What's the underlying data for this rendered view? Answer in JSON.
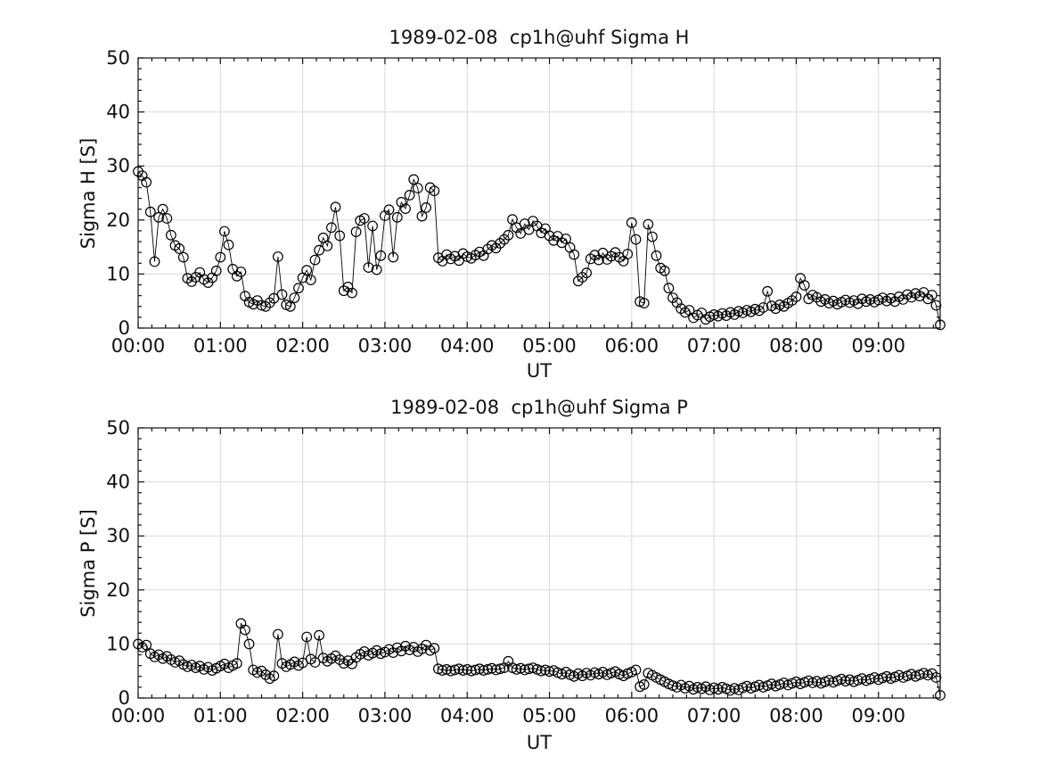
{
  "figure_bg": "#ffffff",
  "chart_data": [
    {
      "type": "scatter",
      "title": "1989-02-08  cp1h@uhf Sigma H",
      "xlabel": "UT",
      "ylabel": "Sigma H [S]",
      "ylim": [
        0,
        50
      ],
      "yticks": [
        0,
        10,
        20,
        30,
        40,
        50
      ],
      "y_minor_step": 2,
      "xlim_hours": [
        0,
        9.75
      ],
      "xticks_hours": [
        0,
        1,
        2,
        3,
        4,
        5,
        6,
        7,
        8,
        9
      ],
      "xtick_labels": [
        "00:00",
        "01:00",
        "02:00",
        "03:00",
        "04:00",
        "05:00",
        "06:00",
        "07:00",
        "08:00",
        "09:00"
      ],
      "x_minor_step_hours": 0.1666667,
      "t0_hours": 0.0,
      "dt_hours": 0.05,
      "marker": "open-circle",
      "line_color": "#000000",
      "grid_color": "#d9d9d9",
      "grid": "major-on",
      "legend": "none",
      "values": [
        29.0,
        28.2,
        27.0,
        21.5,
        12.3,
        20.5,
        22.0,
        20.3,
        17.2,
        15.3,
        14.7,
        13.1,
        9.2,
        8.6,
        9.4,
        10.3,
        9.0,
        8.4,
        9.3,
        10.6,
        13.1,
        17.9,
        15.4,
        10.9,
        9.6,
        10.4,
        5.9,
        4.8,
        4.4,
        5.1,
        4.2,
        4.0,
        4.7,
        5.5,
        13.2,
        6.2,
        4.3,
        4.0,
        5.6,
        7.4,
        9.3,
        10.7,
        8.9,
        12.6,
        14.4,
        16.7,
        15.2,
        18.6,
        22.4,
        17.1,
        6.9,
        7.6,
        6.5,
        17.8,
        19.9,
        20.3,
        11.2,
        18.9,
        10.8,
        13.4,
        20.8,
        21.9,
        13.1,
        20.5,
        23.3,
        22.1,
        24.6,
        27.5,
        25.9,
        20.7,
        22.3,
        26.0,
        25.4,
        13.0,
        12.4,
        13.6,
        12.8,
        13.3,
        12.5,
        13.8,
        13.2,
        12.9,
        13.5,
        14.1,
        13.4,
        14.6,
        15.3,
        14.8,
        15.7,
        16.4,
        17.2,
        20.1,
        18.6,
        17.5,
        19.3,
        18.2,
        19.8,
        18.9,
        17.6,
        18.4,
        17.1,
        16.2,
        17.0,
        15.8,
        16.5,
        14.9,
        13.6,
        8.7,
        9.4,
        10.2,
        12.8,
        13.5,
        12.6,
        13.9,
        12.7,
        13.3,
        14.0,
        13.1,
        12.4,
        13.7,
        19.5,
        16.4,
        4.9,
        4.6,
        19.2,
        16.9,
        13.4,
        11.1,
        10.6,
        7.4,
        5.6,
        4.7,
        3.6,
        2.9,
        3.3,
        1.9,
        2.4,
        2.8,
        1.6,
        2.1,
        2.5,
        2.2,
        2.7,
        2.3,
        2.9,
        2.5,
        3.1,
        2.8,
        3.3,
        3.0,
        3.5,
        3.2,
        3.8,
        6.8,
        4.1,
        3.6,
        4.3,
        4.0,
        4.6,
        5.1,
        5.8,
        9.2,
        7.9,
        5.4,
        6.1,
        5.7,
        4.9,
        5.3,
        4.6,
        5.0,
        4.4,
        4.8,
        5.2,
        4.7,
        5.1,
        4.5,
        5.4,
        4.9,
        5.3,
        4.8,
        5.2,
        5.6,
        5.0,
        5.5,
        4.9,
        5.8,
        5.3,
        6.2,
        5.7,
        6.4,
        5.9,
        6.6,
        5.4,
        6.1,
        4.2,
        0.6
      ]
    },
    {
      "type": "scatter",
      "title": "1989-02-08  cp1h@uhf Sigma P",
      "xlabel": "UT",
      "ylabel": "Sigma P [S]",
      "ylim": [
        0,
        50
      ],
      "yticks": [
        0,
        10,
        20,
        30,
        40,
        50
      ],
      "y_minor_step": 2,
      "xlim_hours": [
        0,
        9.75
      ],
      "xticks_hours": [
        0,
        1,
        2,
        3,
        4,
        5,
        6,
        7,
        8,
        9
      ],
      "xtick_labels": [
        "00:00",
        "01:00",
        "02:00",
        "03:00",
        "04:00",
        "05:00",
        "06:00",
        "07:00",
        "08:00",
        "09:00"
      ],
      "x_minor_step_hours": 0.1666667,
      "t0_hours": 0.0,
      "dt_hours": 0.05,
      "marker": "open-circle",
      "line_color": "#000000",
      "grid_color": "#d9d9d9",
      "grid": "major-on",
      "legend": "none",
      "values": [
        10.0,
        9.4,
        9.8,
        8.2,
        7.6,
        8.0,
        7.3,
        7.7,
        7.1,
        6.6,
        6.9,
        6.2,
        5.8,
        6.1,
        5.6,
        5.9,
        5.3,
        5.7,
        5.1,
        5.5,
        5.9,
        6.3,
        5.6,
        6.0,
        6.4,
        13.8,
        12.6,
        10.0,
        5.2,
        4.7,
        5.0,
        4.3,
        3.6,
        4.1,
        11.8,
        6.4,
        5.8,
        6.2,
        6.7,
        6.0,
        6.5,
        11.3,
        7.2,
        6.6,
        11.6,
        7.4,
        6.8,
        7.3,
        7.8,
        7.1,
        6.4,
        6.9,
        6.3,
        7.5,
        8.1,
        8.6,
        7.9,
        8.3,
        8.8,
        8.2,
        8.5,
        9.0,
        8.4,
        9.3,
        8.7,
        9.6,
        8.9,
        9.4,
        8.6,
        9.1,
        9.8,
        8.8,
        9.2,
        5.4,
        5.1,
        5.3,
        5.0,
        5.2,
        5.4,
        5.1,
        5.3,
        5.0,
        5.2,
        5.4,
        5.1,
        5.3,
        5.5,
        5.2,
        5.4,
        5.6,
        6.8,
        5.6,
        5.3,
        5.5,
        5.2,
        5.4,
        5.6,
        5.3,
        5.0,
        5.2,
        4.9,
        5.1,
        4.7,
        4.4,
        4.8,
        4.3,
        4.0,
        4.5,
        4.1,
        4.6,
        4.2,
        4.7,
        4.4,
        4.8,
        4.3,
        4.6,
        4.9,
        4.4,
        4.1,
        4.5,
        4.8,
        5.2,
        2.1,
        2.5,
        4.6,
        4.2,
        3.8,
        3.4,
        3.0,
        2.6,
        2.3,
        2.0,
        2.4,
        1.8,
        2.2,
        1.6,
        2.0,
        1.7,
        2.1,
        1.5,
        1.9,
        1.6,
        2.0,
        1.7,
        1.4,
        1.8,
        1.5,
        1.9,
        2.2,
        1.8,
        2.1,
        2.4,
        2.0,
        2.3,
        2.6,
        2.2,
        2.5,
        2.8,
        2.4,
        2.7,
        3.0,
        2.6,
        2.9,
        3.2,
        2.8,
        3.1,
        2.7,
        3.0,
        3.3,
        2.9,
        3.2,
        3.5,
        3.1,
        3.4,
        3.0,
        3.3,
        3.6,
        3.2,
        3.5,
        3.8,
        3.4,
        3.7,
        4.0,
        3.6,
        3.9,
        4.2,
        3.8,
        4.1,
        4.4,
        4.0,
        4.3,
        4.6,
        4.2,
        4.5,
        3.8,
        0.5
      ]
    }
  ]
}
